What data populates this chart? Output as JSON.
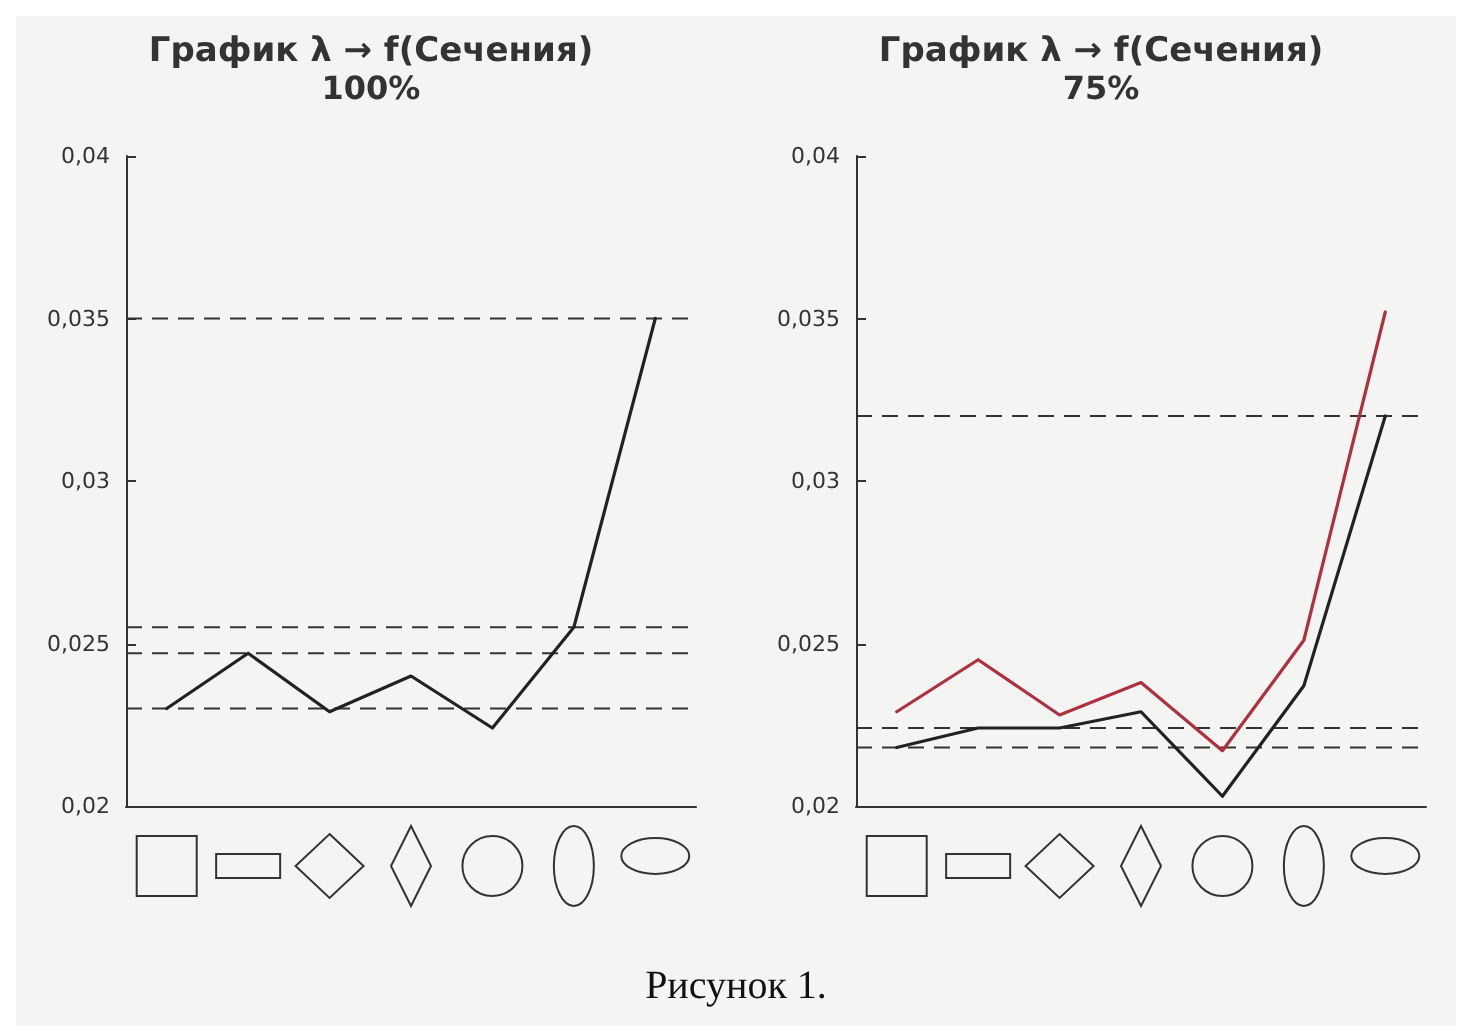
{
  "chart_data": [
    {
      "type": "line",
      "title": "График λ → f(Сечения)",
      "subtitle": "100%",
      "categories": [
        null,
        null,
        null,
        null,
        null,
        null,
        null
      ],
      "series": [
        {
          "color": "#222222",
          "values": [
            0.023,
            0.0247,
            0.0229,
            0.024,
            0.0224,
            0.0255,
            0.035
          ]
        }
      ],
      "ylim": [
        0.02,
        0.04
      ],
      "yticks": [
        {
          "value": 0.02,
          "label": "0,02"
        },
        {
          "value": 0.025,
          "label": "0,025"
        },
        {
          "value": 0.03,
          "label": "0,03"
        },
        {
          "value": 0.035,
          "label": "0,035"
        },
        {
          "value": 0.04,
          "label": "0,04"
        }
      ],
      "ref_lines": [
        {
          "axis": "y",
          "value": 0.035,
          "line_style": "dashed"
        },
        {
          "axis": "y",
          "value": 0.0255,
          "line_style": "dashed"
        },
        {
          "axis": "y",
          "value": 0.0247,
          "line_style": "dashed"
        },
        {
          "axis": "y",
          "value": 0.023,
          "line_style": "dashed"
        }
      ],
      "grid": false,
      "marker": "none",
      "tick_labels": "y",
      "annotations": [
        "Рисунок 1."
      ]
    },
    {
      "type": "line",
      "title": "График λ → f(Сечения)",
      "subtitle": "75%",
      "categories": [
        null,
        null,
        null,
        null,
        null,
        null,
        null
      ],
      "series": [
        {
          "color": "#b03040",
          "values": [
            0.0229,
            0.0245,
            0.0228,
            0.0238,
            0.0217,
            0.0251,
            0.0352
          ]
        },
        {
          "color": "#222222",
          "values": [
            0.0218,
            0.0224,
            0.0224,
            0.0229,
            0.0203,
            0.0237,
            0.032
          ]
        }
      ],
      "ylim": [
        0.02,
        0.04
      ],
      "yticks": [
        {
          "value": 0.02,
          "label": "0,02"
        },
        {
          "value": 0.025,
          "label": "0,025"
        },
        {
          "value": 0.03,
          "label": "0,03"
        },
        {
          "value": 0.035,
          "label": "0,035"
        },
        {
          "value": 0.04,
          "label": "0,04"
        }
      ],
      "ref_lines": [
        {
          "axis": "y",
          "value": 0.032,
          "line_style": "dashed"
        },
        {
          "axis": "y",
          "value": 0.0224,
          "line_style": "dashed"
        },
        {
          "axis": "y",
          "value": 0.0218,
          "line_style": "dashed"
        }
      ],
      "grid": false,
      "marker": "none",
      "tick_labels": "y"
    }
  ]
}
